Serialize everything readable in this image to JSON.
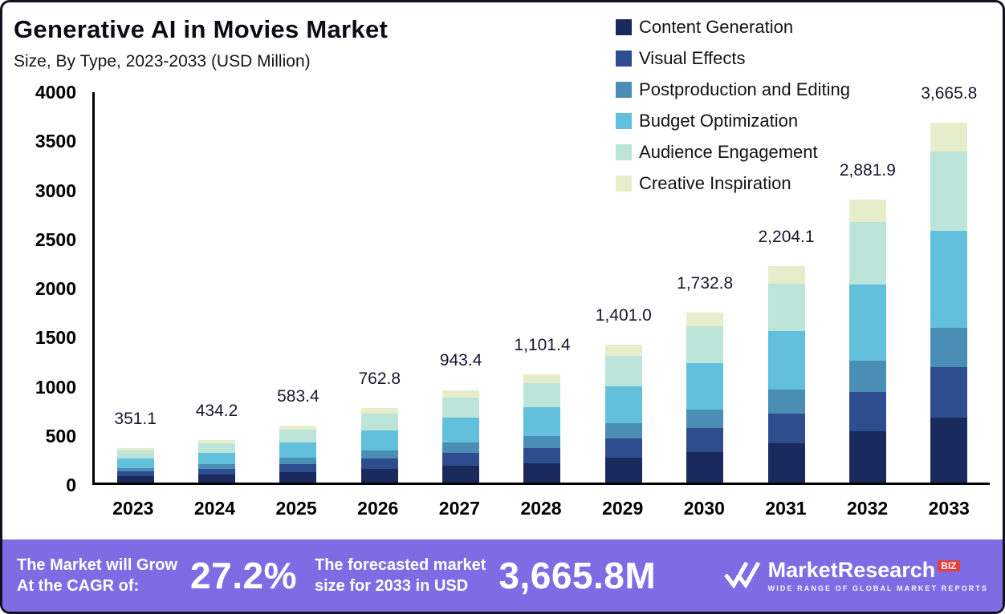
{
  "header": {
    "title": "Generative AI in Movies Market",
    "subtitle": "Size, By Type, 2023-2033 (USD Million)"
  },
  "chart_data": {
    "type": "bar",
    "stacked": true,
    "title": "Generative AI in Movies Market Size, By Type, 2023-2033 (USD Million)",
    "xlabel": "",
    "ylabel": "",
    "ylim": [
      0,
      4000
    ],
    "yticks": [
      0,
      500,
      1000,
      1500,
      2000,
      2500,
      3000,
      3500,
      4000
    ],
    "grid": false,
    "legend_position": "top-right",
    "categories": [
      "2023",
      "2024",
      "2025",
      "2026",
      "2027",
      "2028",
      "2029",
      "2030",
      "2031",
      "2032",
      "2033"
    ],
    "totals": [
      351.1,
      434.2,
      583.4,
      762.8,
      943.4,
      1101.4,
      1401.0,
      1732.8,
      2204.1,
      2881.9,
      3665.8
    ],
    "total_labels": [
      "351.1",
      "434.2",
      "583.4",
      "762.8",
      "943.4",
      "1,101.4",
      "1,401.0",
      "1,732.8",
      "2,204.1",
      "2,881.9",
      "3,665.8"
    ],
    "series": [
      {
        "name": "Content Generation",
        "color": "#1a2a5c",
        "values": [
          63.2,
          78.2,
          105.0,
          137.3,
          169.8,
          198.3,
          252.2,
          311.9,
          396.7,
          518.7,
          659.8
        ]
      },
      {
        "name": "Visual Effects",
        "color": "#2e4d8f",
        "values": [
          49.2,
          60.8,
          81.7,
          106.8,
          132.1,
          154.2,
          196.1,
          242.6,
          308.6,
          403.5,
          513.2
        ]
      },
      {
        "name": "Postproduction and Editing",
        "color": "#4a8db5",
        "values": [
          38.6,
          47.8,
          64.2,
          83.9,
          103.8,
          121.2,
          154.1,
          190.6,
          242.5,
          317.0,
          403.2
        ]
      },
      {
        "name": "Budget Optimization",
        "color": "#63c0dc",
        "values": [
          94.8,
          117.2,
          157.5,
          206.0,
          254.7,
          297.4,
          378.3,
          467.9,
          595.1,
          778.1,
          989.8
        ]
      },
      {
        "name": "Audience Engagement",
        "color": "#bce4d8",
        "values": [
          77.2,
          95.5,
          128.3,
          167.8,
          207.5,
          242.3,
          308.2,
          381.2,
          484.9,
          634.0,
          806.5
        ]
      },
      {
        "name": "Creative Inspiration",
        "color": "#e6edca",
        "values": [
          28.1,
          34.7,
          46.7,
          61.0,
          75.5,
          88.0,
          112.1,
          138.6,
          176.3,
          230.6,
          293.3
        ]
      }
    ]
  },
  "footer": {
    "background": "#7d6ce4",
    "cagr_line1": "The Market will Grow",
    "cagr_line2": "At the CAGR of:",
    "cagr_value": "27.2%",
    "forecast_line1": "The forecasted market",
    "forecast_line2": "size for 2033 in USD",
    "forecast_value": "3,665.8M",
    "brand": {
      "name_main": "MarketResearch",
      "name_suffix": "BIZ",
      "tagline": "WIDE RANGE OF GLOBAL MARKET REPORTS",
      "accent_color": "#e2403c"
    }
  }
}
